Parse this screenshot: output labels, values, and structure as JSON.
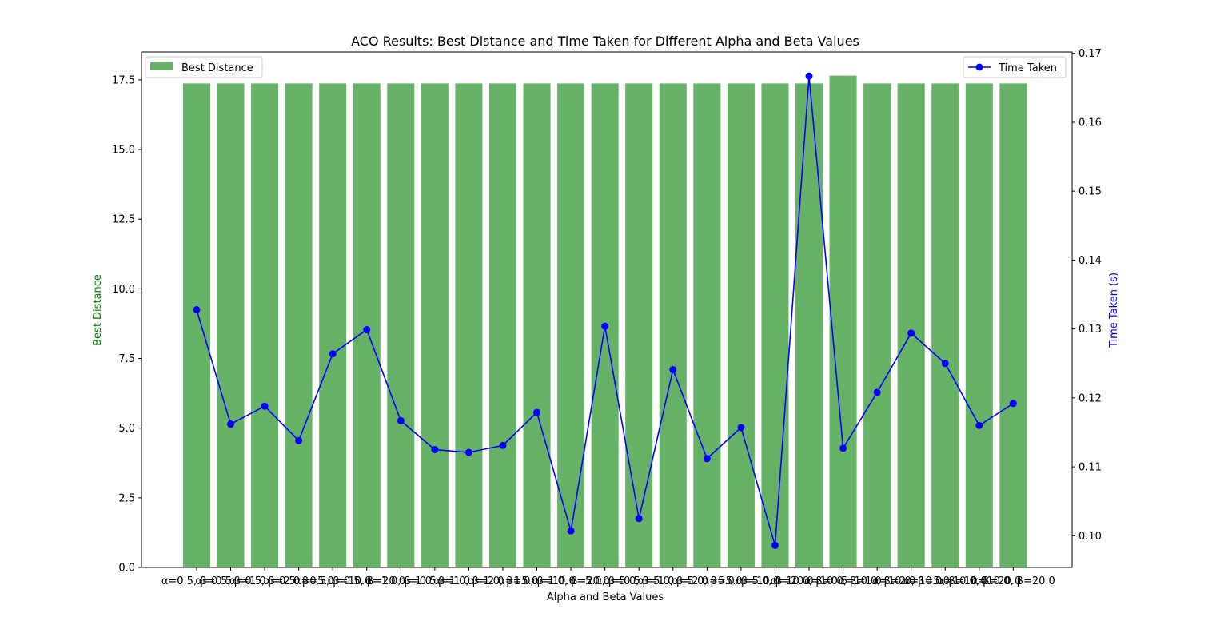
{
  "chart_data": {
    "type": "bar",
    "title": "ACO Results: Best Distance and Time Taken for Different Alpha and Beta Values",
    "xlabel": "Alpha and Beta Values",
    "ylabel": "Best Distance",
    "y2label": "Time Taken (s)",
    "categories": [
      "α=0.5, β=0.5",
      "α=0.5, β=1.0",
      "α=0.5, β=2.0",
      "α=0.5, β=5.0",
      "α=0.5, β=10.0",
      "α=0.5, β=20.0",
      "α=1.0, β=0.5",
      "α=1.0, β=1.0",
      "α=1.0, β=2.0",
      "α=1.0, β=5.0",
      "α=1.0, β=10.0",
      "α=1.0, β=20.0",
      "α=5.0, β=0.5",
      "α=5.0, β=1.0",
      "α=5.0, β=2.0",
      "α=5.0, β=5.0",
      "α=5.0, β=10.0",
      "α=5.0, β=20.0",
      "α=10.0, β=0.5",
      "α=10.0, β=1.0",
      "α=10.0, β=2.0",
      "α=10.0, β=5.0",
      "α=10.0, β=10.0",
      "α=10.0, β=20.0",
      "α=10.0, β=20.0"
    ],
    "series": [
      {
        "name": "Best Distance",
        "axis": "left",
        "kind": "bar",
        "color": "#66b266",
        "values": [
          17.37,
          17.37,
          17.37,
          17.37,
          17.37,
          17.37,
          17.37,
          17.37,
          17.37,
          17.37,
          17.37,
          17.37,
          17.37,
          17.37,
          17.37,
          17.37,
          17.37,
          17.37,
          17.37,
          17.65,
          17.37,
          17.37,
          17.37,
          17.37,
          17.37
        ]
      },
      {
        "name": "Time Taken",
        "axis": "right",
        "kind": "line",
        "color": "#0000ff",
        "values": [
          0.1328,
          0.1162,
          0.1188,
          0.1138,
          0.1264,
          0.1299,
          0.1167,
          0.1125,
          0.1121,
          0.1131,
          0.1179,
          0.1007,
          0.1304,
          0.1025,
          0.1241,
          0.1112,
          0.1157,
          0.0986,
          0.1667,
          0.1127,
          0.1208,
          0.1294,
          0.125,
          0.116,
          0.1192
        ]
      }
    ],
    "ylim": [
      0,
      18.5
    ],
    "y2lim": [
      0.0954,
      0.1702
    ],
    "yticks": [
      "0.0",
      "2.5",
      "5.0",
      "7.5",
      "10.0",
      "12.5",
      "15.0",
      "17.5"
    ],
    "y2ticks": [
      "0.10",
      "0.11",
      "0.12",
      "0.13",
      "0.14",
      "0.15",
      "0.16",
      "0.17"
    ],
    "legend_left": "top-left",
    "legend_right": "top-right",
    "grid": false
  }
}
